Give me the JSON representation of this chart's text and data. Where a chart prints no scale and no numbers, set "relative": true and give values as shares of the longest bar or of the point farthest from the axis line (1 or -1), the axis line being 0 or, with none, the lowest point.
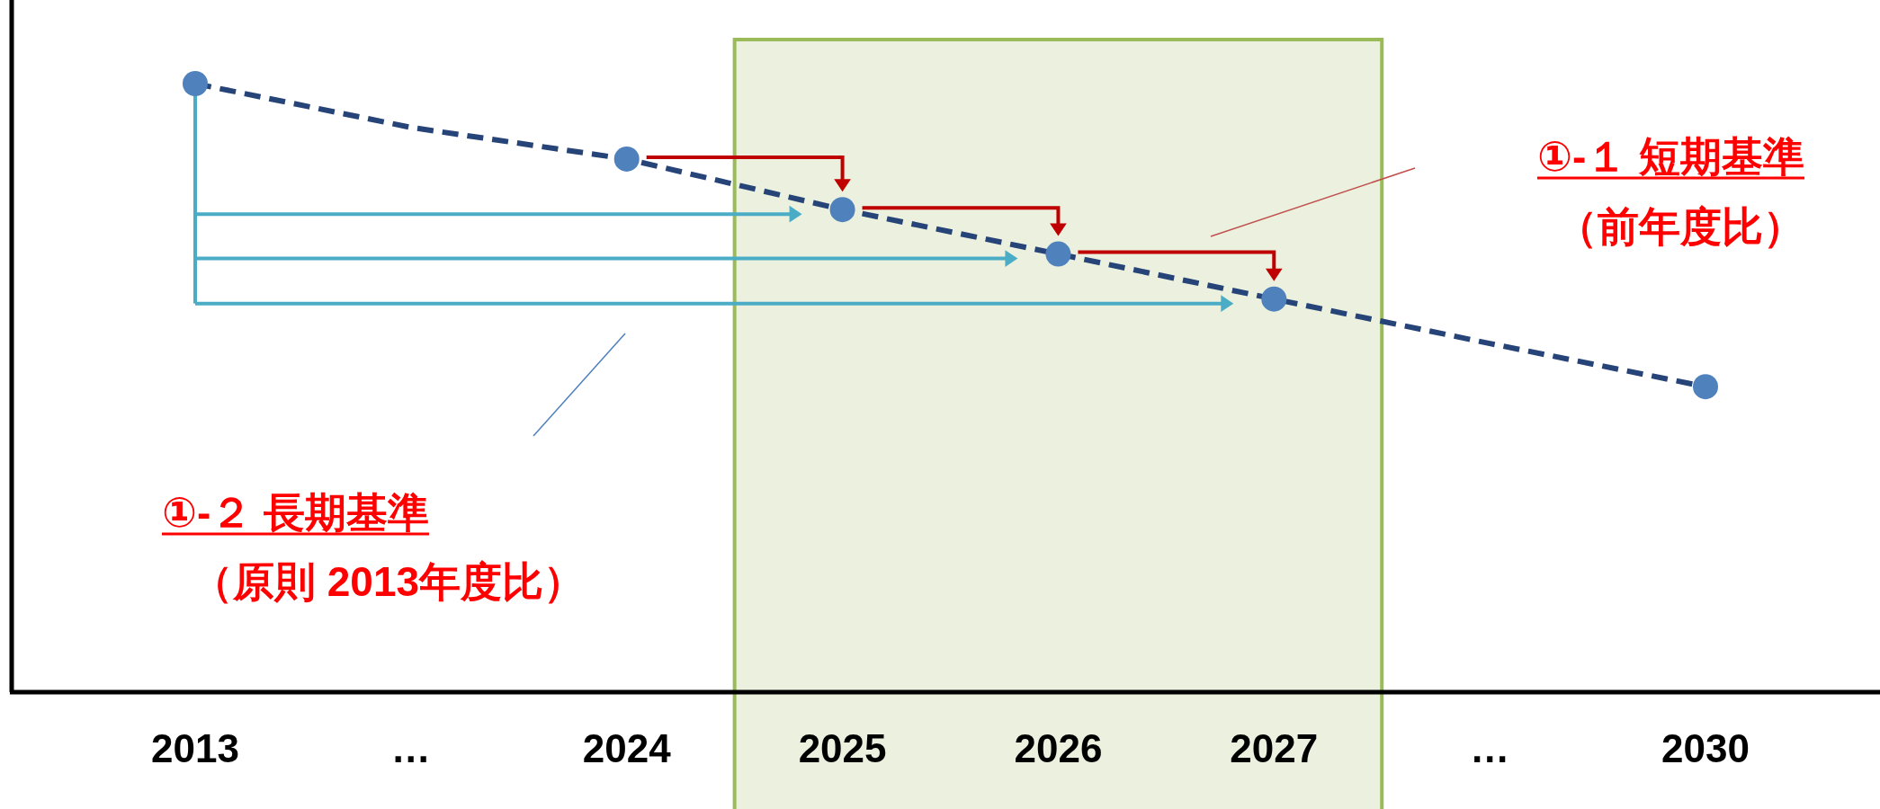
{
  "chart_data": {
    "type": "line",
    "relative": true,
    "tick_labels": "x",
    "categories": [
      "2013",
      "…",
      "2024",
      "2025",
      "2026",
      "2027",
      "…",
      "2030"
    ],
    "series": [
      {
        "color": "#264478",
        "line_style": "dashed",
        "marker": "none",
        "values": [
          1,
          0.928,
          0.876,
          0.793,
          0.72,
          0.646,
          0.573,
          0.502
        ]
      },
      {
        "type": "scatter",
        "color": "#4f81bd",
        "marker": "circle",
        "values": [
          1,
          null,
          0.876,
          0.793,
          0.72,
          0.646,
          null,
          0.502
        ]
      }
    ],
    "bands": [
      {
        "axis": "x",
        "from": "2025",
        "to": "2027",
        "color": "#ebf1de"
      }
    ],
    "annotations": [
      "①-１ 短期基準",
      "（前年度比）",
      "①-２ 長期基準",
      "（原則 2013年度比）"
    ]
  }
}
